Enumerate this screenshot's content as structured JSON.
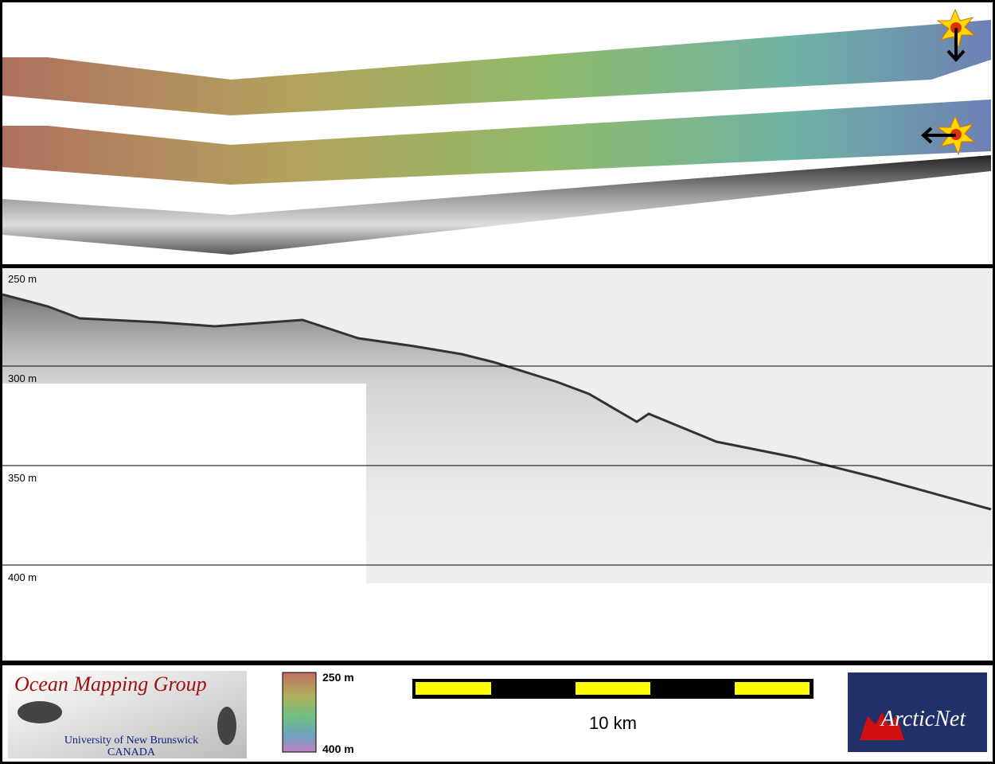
{
  "profile": {
    "depth_labels": [
      "250 m",
      "300 m",
      "350 m",
      "400 m"
    ]
  },
  "footer": {
    "logo": {
      "title": "Ocean Mapping Group",
      "university": "University of New Brunswick",
      "country": "CANADA"
    },
    "colorbar": {
      "top_label": "250 m",
      "bottom_label": "400 m"
    },
    "scale_bar": {
      "label": "10 km"
    },
    "partner_logo": {
      "text": "ArcticNet"
    }
  }
}
